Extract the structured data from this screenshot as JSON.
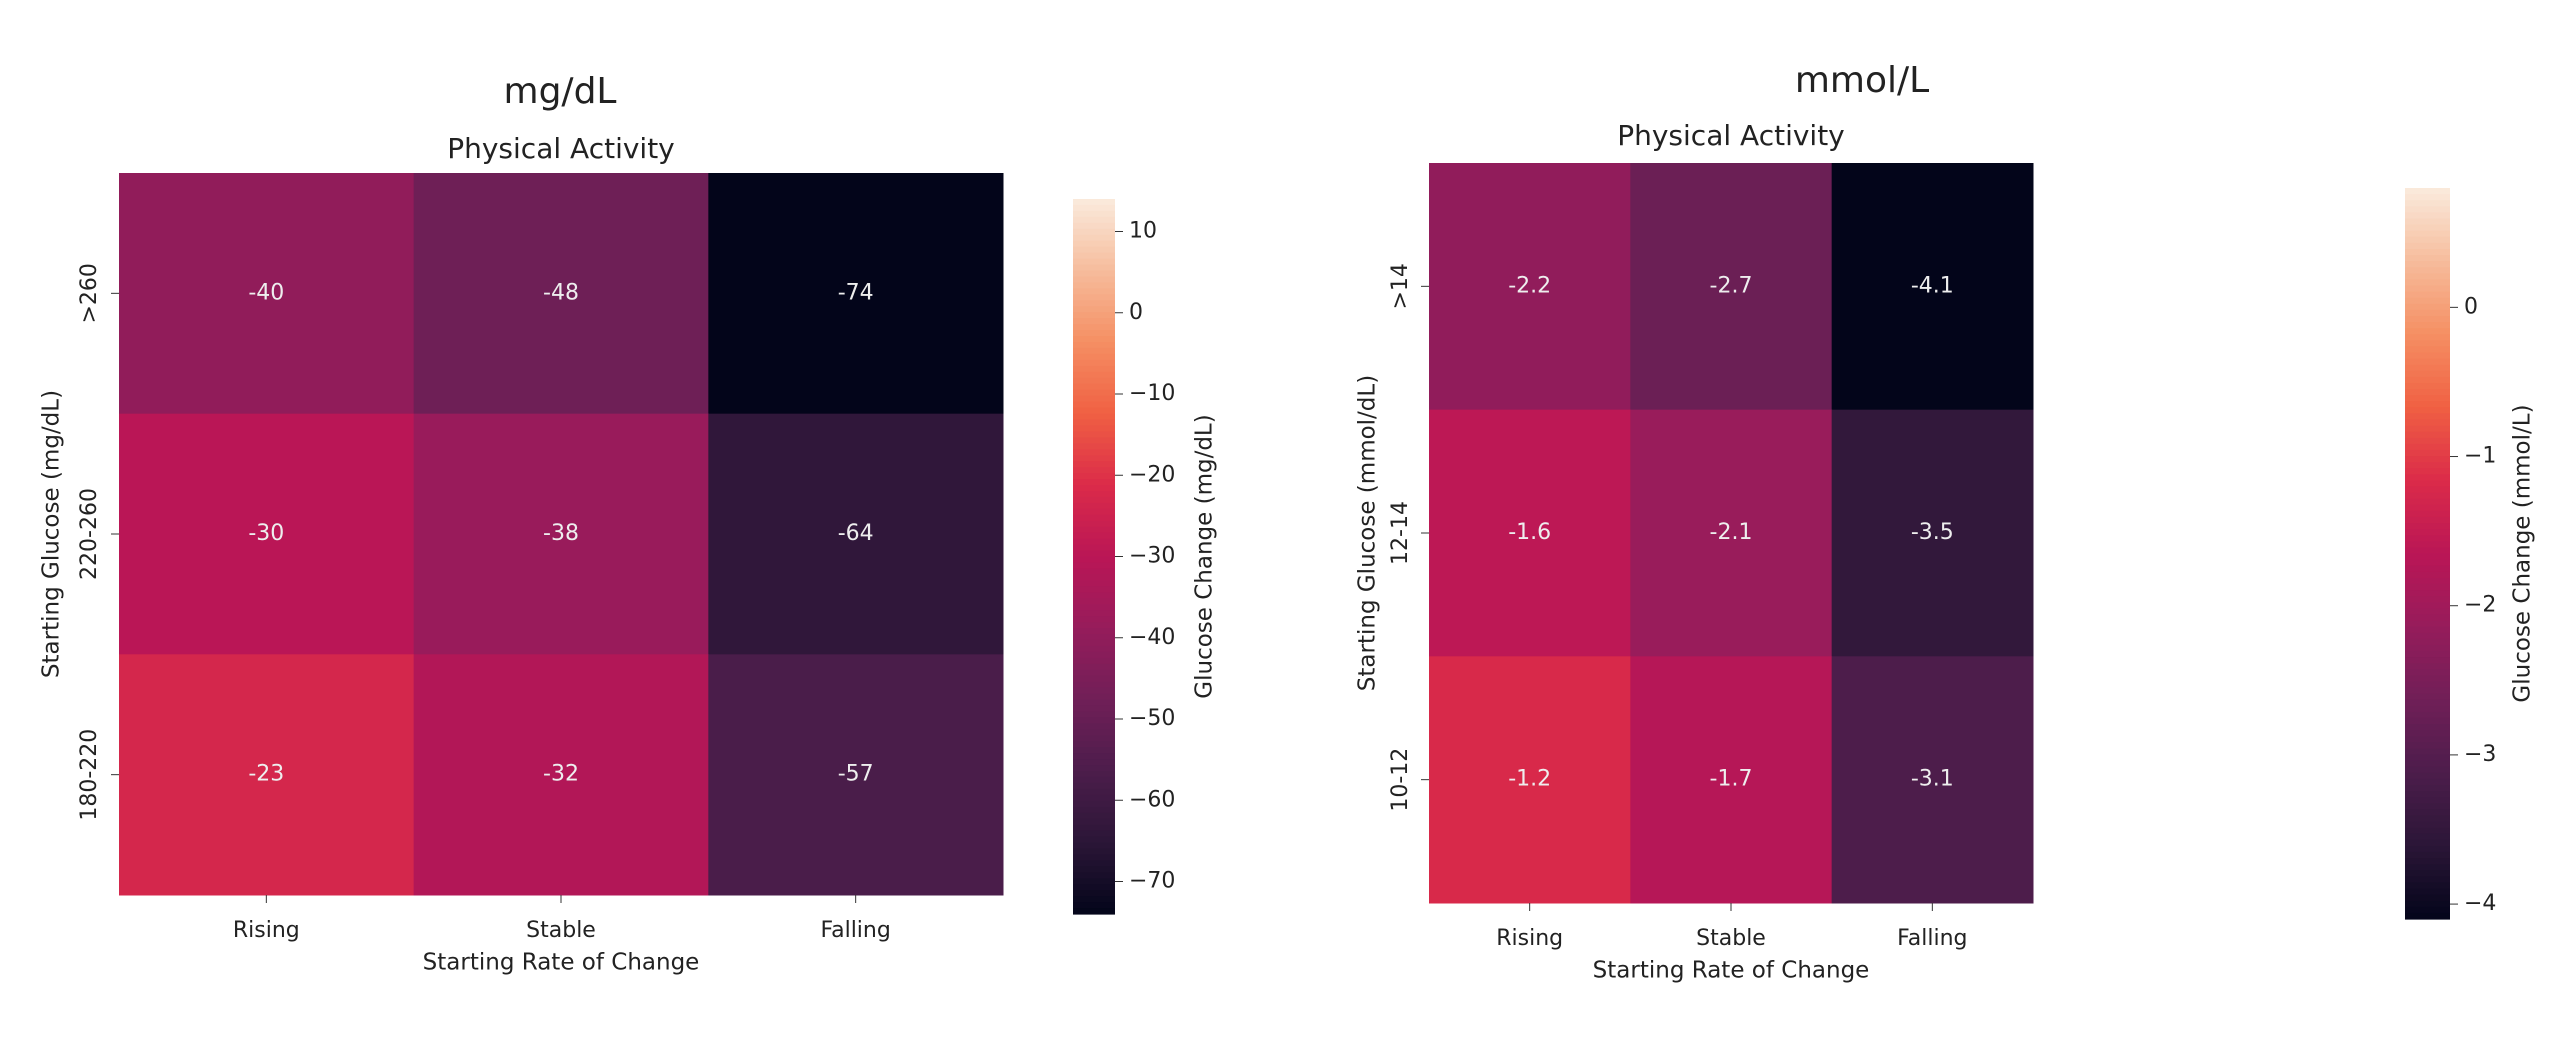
{
  "chart_data": [
    {
      "type": "heatmap",
      "header": "mg/dL",
      "title": "Physical Activity",
      "xlabel": "Starting Rate of Change",
      "ylabel": "Starting Glucose (mg/dL)",
      "categories": [
        "Rising",
        "Stable",
        "Falling"
      ],
      "rows": [
        ">260",
        "220-260",
        "180-220"
      ],
      "values": [
        [
          -40,
          -48,
          -74
        ],
        [
          -30,
          -38,
          -64
        ],
        [
          -23,
          -32,
          -57
        ]
      ],
      "colormap": "rocket",
      "colorbar_label": "Glucose Change (mg/dL)",
      "clim": [
        -74,
        14
      ],
      "cticks": [
        10,
        0,
        {
          "value": -10,
          "label": "−10"
        },
        {
          "value": -20,
          "label": "−20"
        },
        {
          "value": -30,
          "label": "−30"
        },
        {
          "value": -40,
          "label": "−40"
        },
        {
          "value": -50,
          "label": "−50"
        },
        {
          "value": -60,
          "label": "−60"
        },
        {
          "value": -70,
          "label": "−70"
        }
      ]
    },
    {
      "type": "heatmap",
      "header": "mmol/L",
      "title": "Physical Activity",
      "xlabel": "Starting Rate of Change",
      "ylabel": "Starting Glucose (mmol/dL)",
      "categories": [
        "Rising",
        "Stable",
        "Falling"
      ],
      "rows": [
        ">14",
        "12-14",
        "10-12"
      ],
      "values": [
        [
          -2.2,
          -2.7,
          -4.1
        ],
        [
          -1.6,
          -2.1,
          -3.5
        ],
        [
          -1.2,
          -1.7,
          -3.1
        ]
      ],
      "colormap": "rocket",
      "colorbar_label": "Glucose Change (mmol/L)",
      "clim": [
        -4.1,
        0.8
      ],
      "cticks": [
        0,
        {
          "value": -1,
          "label": "−1"
        },
        {
          "value": -2,
          "label": "−2"
        },
        {
          "value": -3,
          "label": "−3"
        },
        {
          "value": -4,
          "label": "−4"
        }
      ]
    }
  ]
}
